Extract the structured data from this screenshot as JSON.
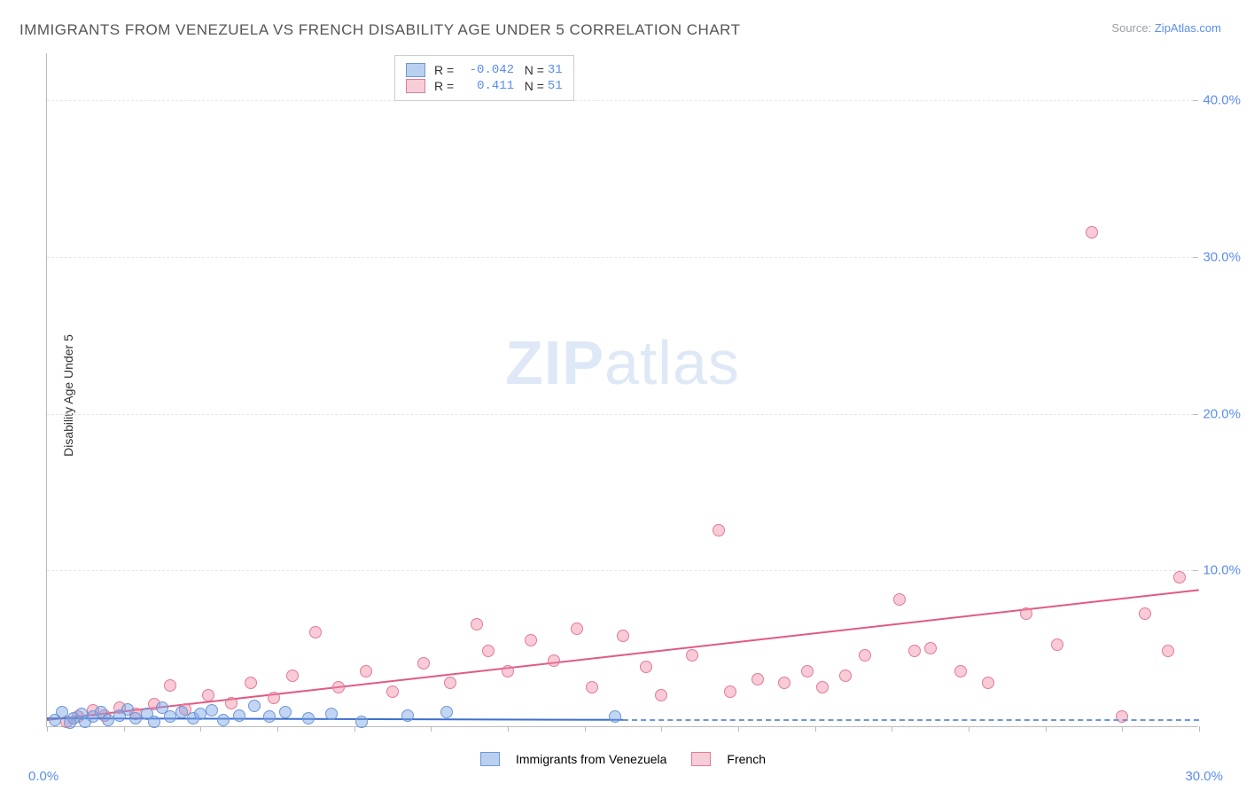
{
  "title": "IMMIGRANTS FROM VENEZUELA VS FRENCH DISABILITY AGE UNDER 5 CORRELATION CHART",
  "source_label": "Source:",
  "source_link": "ZipAtlas.com",
  "watermark_bold": "ZIP",
  "watermark_light": "atlas",
  "ylabel": "Disability Age Under 5",
  "chart": {
    "type": "scatter",
    "x_min": 0,
    "x_max": 30,
    "y_min": 0,
    "y_max": 43,
    "x_tick_0": "0.0%",
    "x_tick_30": "30.0%",
    "y_ticks": [
      {
        "v": 10,
        "label": "10.0%"
      },
      {
        "v": 20,
        "label": "20.0%"
      },
      {
        "v": 30,
        "label": "30.0%"
      },
      {
        "v": 40,
        "label": "40.0%"
      }
    ],
    "x_minor_step": 2,
    "grid_color": "#e5e5e5",
    "axis_color": "#bbbbbb",
    "background_color": "#ffffff",
    "marker_radius": 7,
    "marker_opacity": 0.5,
    "series": [
      {
        "name": "Immigrants from Venezuela",
        "short": "venezuela",
        "color_fill": "rgba(120,165,230,0.45)",
        "color_stroke": "#6e97d4",
        "swatch_fill": "#b9d0f0",
        "swatch_border": "#6e97d4",
        "R": "-0.042",
        "N": "31",
        "trend": {
          "x1": 0,
          "y1": 0.6,
          "x2": 15,
          "y2": 0.5,
          "color": "#3b6fd1",
          "width": 2
        },
        "dashed_ext": {
          "x1": 15,
          "y1": 0.5,
          "x2": 30,
          "y2": 0.5,
          "color": "#6e97d4"
        },
        "points": [
          [
            0.2,
            0.4
          ],
          [
            0.4,
            0.9
          ],
          [
            0.6,
            0.2
          ],
          [
            0.7,
            0.5
          ],
          [
            0.9,
            0.8
          ],
          [
            1.0,
            0.3
          ],
          [
            1.2,
            0.6
          ],
          [
            1.4,
            0.9
          ],
          [
            1.6,
            0.4
          ],
          [
            1.9,
            0.7
          ],
          [
            2.1,
            1.1
          ],
          [
            2.3,
            0.5
          ],
          [
            2.6,
            0.8
          ],
          [
            2.8,
            0.3
          ],
          [
            3.0,
            1.2
          ],
          [
            3.2,
            0.6
          ],
          [
            3.5,
            0.9
          ],
          [
            3.8,
            0.5
          ],
          [
            4.0,
            0.8
          ],
          [
            4.3,
            1.0
          ],
          [
            4.6,
            0.4
          ],
          [
            5.0,
            0.7
          ],
          [
            5.4,
            1.3
          ],
          [
            5.8,
            0.6
          ],
          [
            6.2,
            0.9
          ],
          [
            6.8,
            0.5
          ],
          [
            7.4,
            0.8
          ],
          [
            8.2,
            0.3
          ],
          [
            9.4,
            0.7
          ],
          [
            10.4,
            0.9
          ],
          [
            14.8,
            0.6
          ]
        ]
      },
      {
        "name": "French",
        "short": "french",
        "color_fill": "rgba(240,140,165,0.45)",
        "color_stroke": "#e27a9a",
        "swatch_fill": "#f7cdd8",
        "swatch_border": "#e27a9a",
        "R": "0.411",
        "N": "51",
        "trend": {
          "x1": 0,
          "y1": 0.5,
          "x2": 30,
          "y2": 8.8,
          "color": "#e05a85",
          "width": 2
        },
        "points": [
          [
            0.5,
            0.3
          ],
          [
            0.8,
            0.6
          ],
          [
            1.2,
            1.0
          ],
          [
            1.5,
            0.7
          ],
          [
            1.9,
            1.2
          ],
          [
            2.3,
            0.8
          ],
          [
            2.8,
            1.4
          ],
          [
            3.2,
            2.6
          ],
          [
            3.6,
            1.1
          ],
          [
            4.2,
            2.0
          ],
          [
            4.8,
            1.5
          ],
          [
            5.3,
            2.8
          ],
          [
            5.9,
            1.8
          ],
          [
            6.4,
            3.2
          ],
          [
            7.0,
            6.0
          ],
          [
            7.6,
            2.5
          ],
          [
            8.3,
            3.5
          ],
          [
            9.0,
            2.2
          ],
          [
            9.8,
            4.0
          ],
          [
            10.5,
            2.8
          ],
          [
            11.2,
            6.5
          ],
          [
            11.5,
            4.8
          ],
          [
            12.0,
            3.5
          ],
          [
            12.6,
            5.5
          ],
          [
            13.2,
            4.2
          ],
          [
            13.8,
            6.2
          ],
          [
            14.2,
            2.5
          ],
          [
            15.0,
            5.8
          ],
          [
            15.6,
            3.8
          ],
          [
            16.0,
            2.0
          ],
          [
            16.8,
            4.5
          ],
          [
            17.5,
            12.5
          ],
          [
            17.8,
            2.2
          ],
          [
            18.5,
            3.0
          ],
          [
            19.2,
            2.8
          ],
          [
            19.8,
            3.5
          ],
          [
            20.2,
            2.5
          ],
          [
            20.8,
            3.2
          ],
          [
            21.3,
            4.5
          ],
          [
            22.2,
            8.1
          ],
          [
            22.6,
            4.8
          ],
          [
            23.0,
            5.0
          ],
          [
            23.8,
            3.5
          ],
          [
            24.5,
            2.8
          ],
          [
            25.5,
            7.2
          ],
          [
            26.3,
            5.2
          ],
          [
            27.2,
            31.5
          ],
          [
            28.0,
            0.6
          ],
          [
            28.6,
            7.2
          ],
          [
            29.5,
            9.5
          ],
          [
            29.2,
            4.8
          ]
        ]
      }
    ]
  },
  "legend_r_label": "R =",
  "legend_n_label": "N ="
}
